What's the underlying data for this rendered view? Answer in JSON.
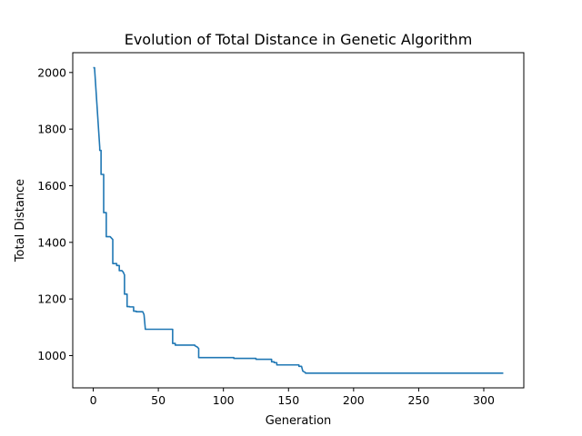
{
  "chart_data": {
    "type": "line",
    "title": "Evolution of Total Distance in Genetic Algorithm",
    "xlabel": "Generation",
    "ylabel": "Total Distance",
    "xlim": [
      -15.75,
      330.75
    ],
    "ylim": [
      886,
      2070
    ],
    "xticks": [
      0,
      50,
      100,
      150,
      200,
      250,
      300
    ],
    "yticks": [
      1000,
      1200,
      1400,
      1600,
      1800,
      2000
    ],
    "grid": false,
    "legend": "none",
    "color": "#1f77b4",
    "series": [
      {
        "x": [
          0,
          1,
          1,
          5,
          5,
          6,
          6,
          8,
          8,
          10,
          10,
          13,
          15,
          15,
          18,
          18,
          20,
          20,
          22,
          23,
          24,
          24,
          26,
          26,
          28,
          28,
          31,
          31,
          33,
          33,
          38,
          39,
          39,
          40,
          40,
          61,
          61,
          63,
          63,
          78,
          78,
          80,
          81,
          81,
          108,
          108,
          125,
          125,
          137,
          137,
          139,
          139,
          141,
          141,
          158,
          158,
          160,
          161,
          161,
          163,
          163,
          315
        ],
        "y": [
          2017,
          2017,
          2015,
          1735,
          1725,
          1725,
          1640,
          1640,
          1505,
          1505,
          1420,
          1420,
          1410,
          1325,
          1325,
          1318,
          1318,
          1300,
          1300,
          1295,
          1285,
          1217,
          1217,
          1173,
          1173,
          1172,
          1172,
          1157,
          1157,
          1155,
          1155,
          1145,
          1145,
          1094,
          1093,
          1093,
          1043,
          1043,
          1037,
          1037,
          1035,
          1030,
          1025,
          993,
          993,
          990,
          990,
          987,
          987,
          978,
          978,
          975,
          975,
          967,
          967,
          962,
          962,
          945,
          945,
          940,
          938,
          938
        ]
      }
    ]
  }
}
